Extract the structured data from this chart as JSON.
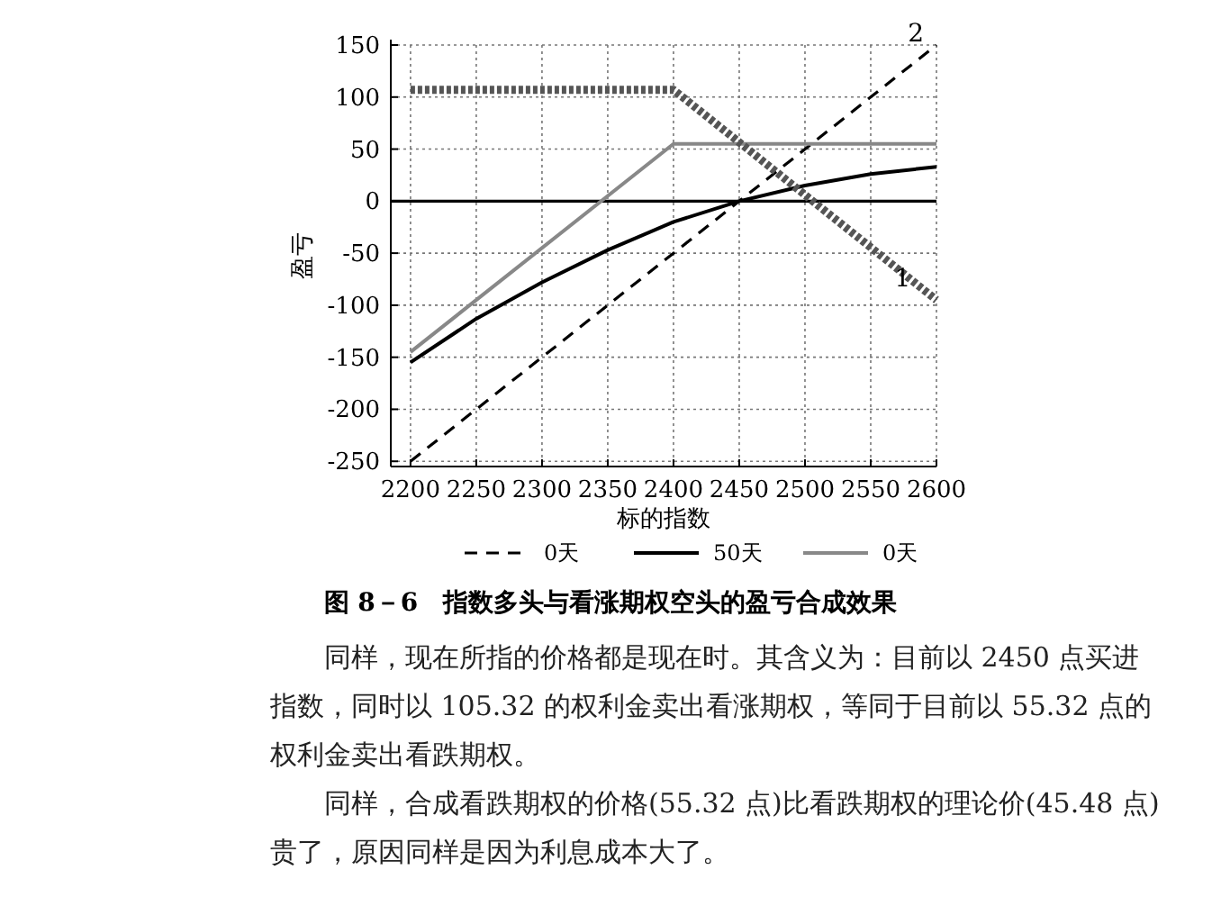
{
  "chart_data": {
    "type": "line",
    "title": "图 8－6　指数多头与看涨期权空头的盈亏合成效果",
    "xlabel": "标的指数",
    "ylabel": "盈亏",
    "xlim": [
      2185,
      2600
    ],
    "xticks": [
      2200,
      2250,
      2300,
      2350,
      2400,
      2450,
      2500,
      2550,
      2600
    ],
    "ylim": [
      -255,
      150
    ],
    "yticks": [
      -250,
      -200,
      -150,
      -100,
      -50,
      0,
      50,
      100,
      150
    ],
    "grid": true,
    "legend": "bottom",
    "series": [
      {
        "name": "0天",
        "color": "#000000",
        "line_style": "dashed",
        "x": [
          2200,
          2600
        ],
        "values": [
          -250,
          150
        ]
      },
      {
        "name": "50天",
        "color": "#000000",
        "line_style": "solid",
        "x": [
          2200,
          2250,
          2300,
          2350,
          2400,
          2450,
          2500,
          2550,
          2600
        ],
        "values": [
          -155,
          -113,
          -78,
          -47,
          -20,
          0,
          15,
          26,
          33
        ]
      },
      {
        "name": "0天",
        "color": "#888888",
        "line_style": "solid",
        "x": [
          2200,
          2400,
          2600
        ],
        "values": [
          -145,
          55,
          55
        ]
      },
      {
        "color": "#555555",
        "line_style": "dotted",
        "x": [
          2200,
          2400,
          2600
        ],
        "values": [
          107,
          107,
          -95
        ]
      }
    ],
    "ref_lines": [
      {
        "axis": "y",
        "value": 0,
        "color": "#000000"
      }
    ],
    "annotations": [
      {
        "text": "1",
        "x": 2590,
        "y": -85
      },
      {
        "text": "2",
        "x": 2600,
        "y": 150
      },
      "同样，现在所指的价格都是现在时。其含义为：目前以 2450 点买进指数，同时以 105.32 的权利金卖出看涨期权，等同于目前以 55.32 点的权利金卖出看跌期权。",
      "同样，合成看跌期权的价格(55.32 点)比看跌期权的理论价(45.48 点)贵了，原因同样是因为利息成本大了。"
    ]
  }
}
